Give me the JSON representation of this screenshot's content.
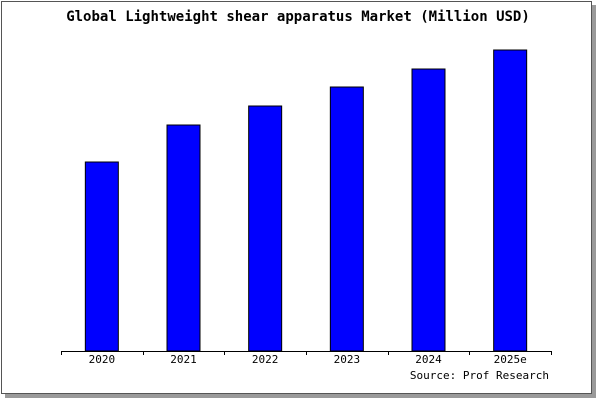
{
  "chart_data": {
    "type": "bar",
    "title": "Global Lightweight shear apparatus Market (Million USD)",
    "categories": [
      "2020",
      "2021",
      "2022",
      "2023",
      "2024",
      "2025e"
    ],
    "values": [
      189,
      226,
      245,
      264,
      282,
      301
    ],
    "color": "#0000ff",
    "ylim": [
      0,
      301
    ],
    "source": "Source: Prof Research"
  }
}
